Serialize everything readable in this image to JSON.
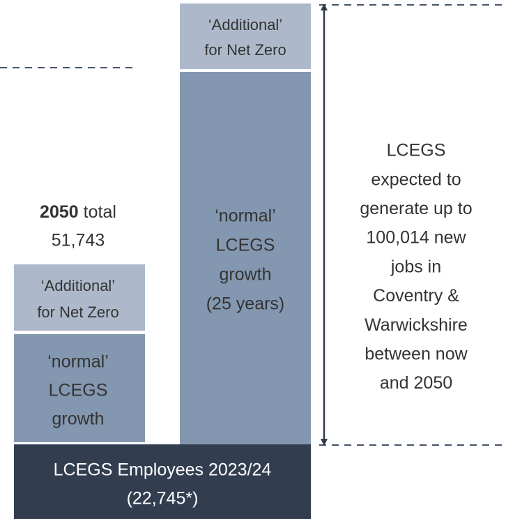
{
  "total_label": {
    "year": "2050",
    "text": "total",
    "value": "51,743"
  },
  "left_stack": {
    "additional": [
      "‘Additional’",
      "for Net Zero"
    ],
    "normal": [
      "‘normal’",
      "LCEGS",
      "growth"
    ]
  },
  "right_stack": {
    "additional": [
      "‘Additional’",
      "for Net Zero"
    ],
    "normal": [
      "‘normal’",
      "LCEGS",
      "growth",
      "(25 years)"
    ]
  },
  "base": [
    "LCEGS Employees 2023/24",
    "(22,745*)"
  ],
  "right_text": [
    "LCEGS",
    "expected to",
    "generate up to",
    "100,014 new",
    "jobs in",
    "Coventry &",
    "Warwickshire",
    "between now",
    "and 2050"
  ]
}
